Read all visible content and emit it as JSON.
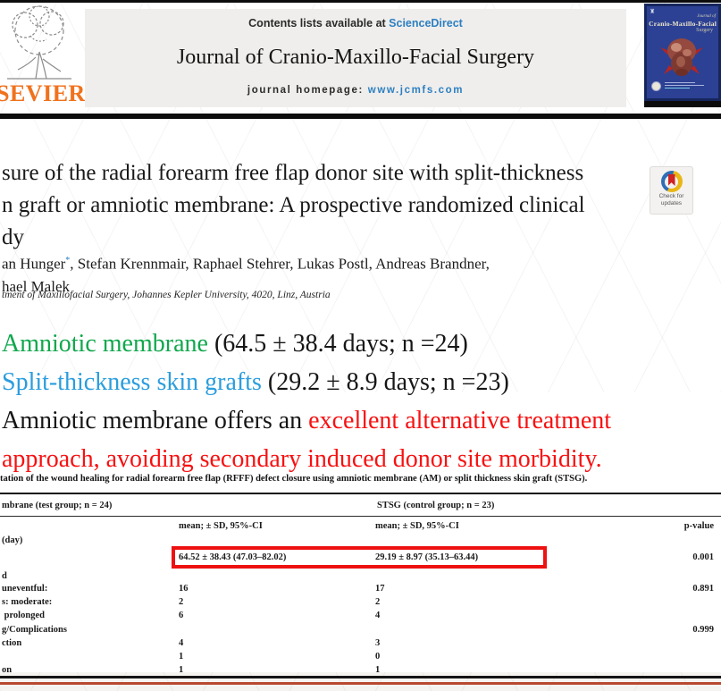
{
  "header": {
    "contents_prefix": "Contents lists available at ",
    "contents_link": "ScienceDirect",
    "journal_title": "Journal of Cranio-Maxillo-Facial Surgery",
    "homepage_prefix": "journal homepage: ",
    "homepage_link": "www.jcmfs.com",
    "publisher_wordmark": "SEVIER",
    "cover": {
      "journal_of": "Journal of",
      "title": "Cranio-Maxillo-Facial",
      "subtitle": "Surgery"
    }
  },
  "article": {
    "title_lines": [
      "sure of the radial forearm free flap donor site with split-thickness",
      "n graft or amniotic membrane: A prospective randomized clinical",
      "dy"
    ],
    "authors_line1_pre": "an Hunger",
    "authors_asterisk": "*",
    "authors_line1_post": ", Stefan Krennmair, Raphael Stehrer, Lukas Postl, Andreas Brandner,",
    "authors_line2": "hael Malek",
    "affiliation": "tment of Maxillofacial Surgery, Johannes Kepler University, 4020, Linz, Austria",
    "check_updates_line1": "Check for",
    "check_updates_line2": "updates"
  },
  "highlights": {
    "line1_colored": "Amniotic membrane",
    "line1_rest": " (64.5 ± 38.4 days; n =24)",
    "line2_colored": "Split-thickness skin grafts",
    "line2_rest": " (29.2 ± 8.9 days; n =23)",
    "line3_black": "Amniotic membrane offers an ",
    "line3_red": "excellent alternative treatment",
    "line4_red": "approach, avoiding secondary induced donor site morbidity.",
    "colors": {
      "green": "#10a74d",
      "blue": "#2a9ddd",
      "red": "#f71111"
    }
  },
  "table": {
    "caption": "tation of the wound healing for radial forearm free flap (RFFF) defect closure using amniotic membrane (AM) or split thickness skin graft (STSG).",
    "group_headers": [
      "mbrane (test group; n = 24)",
      "STSG (control group; n = 23)"
    ],
    "col_headers": [
      "mean; ± SD, 95%-CI",
      "mean; ± SD, 95%-CI",
      "p-value"
    ],
    "rows": [
      {
        "label": "(day)",
        "am": "",
        "stsg": "",
        "p": ""
      },
      {
        "label": "",
        "am": "64.52 ± 38.43 (47.03–82.02)",
        "stsg": "29.19 ± 8.97 (35.13–63.44)",
        "p": "0.001",
        "highlight": true
      },
      {
        "label": "d",
        "am": "",
        "stsg": "",
        "p": ""
      },
      {
        "label": "uneventful:",
        "am": "16",
        "stsg": "17",
        "p": "0.891"
      },
      {
        "label": "s: moderate:",
        "am": "2",
        "stsg": "2",
        "p": ""
      },
      {
        "label": " prolonged",
        "am": "6",
        "stsg": "4",
        "p": ""
      },
      {
        "label": "g/Complications",
        "am": "",
        "stsg": "",
        "p": "0.999"
      },
      {
        "label": "ction",
        "am": "4",
        "stsg": "3",
        "p": ""
      },
      {
        "label": "",
        "am": "1",
        "stsg": "0",
        "p": ""
      },
      {
        "label": "on",
        "am": "1",
        "stsg": "1",
        "p": ""
      }
    ],
    "highlight_box_color": "#ee1111"
  },
  "footer": {
    "divider_color": "#b84a30"
  }
}
